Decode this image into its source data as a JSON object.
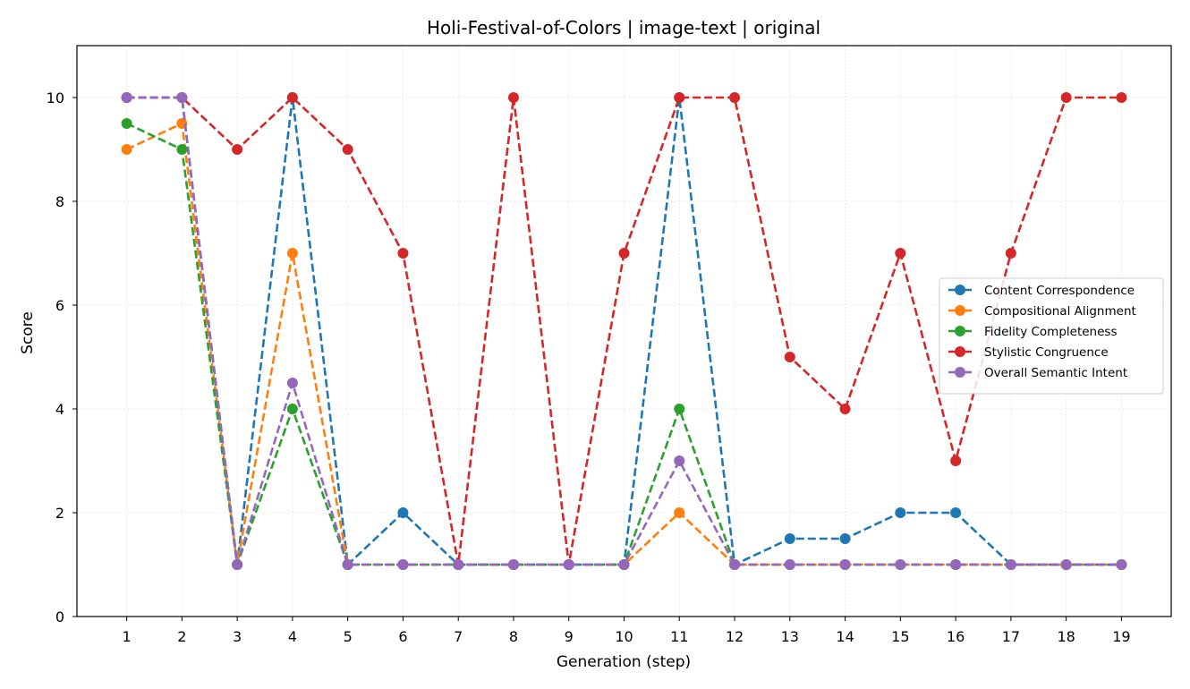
{
  "chart_data": {
    "type": "line",
    "title": "Holi-Festival-of-Colors | image-text | original",
    "xlabel": "Generation (step)",
    "ylabel": "Score",
    "x": [
      1,
      2,
      3,
      4,
      5,
      6,
      7,
      8,
      9,
      10,
      11,
      12,
      13,
      14,
      15,
      16,
      17,
      18,
      19
    ],
    "ylim": [
      0,
      11
    ],
    "xlim": [
      0.1,
      19.9
    ],
    "yticks": [
      0,
      2,
      4,
      6,
      8,
      10
    ],
    "grid": true,
    "line_style": "dashed",
    "marker": "circle",
    "legend_position": "center-right",
    "series": [
      {
        "name": "Content Correspondence",
        "color": "#1f77b4",
        "values": [
          10,
          10,
          1,
          10,
          1,
          2,
          1,
          1,
          1,
          1,
          10,
          1,
          1.5,
          1.5,
          2,
          2,
          1,
          1,
          1
        ]
      },
      {
        "name": "Compositional Alignment",
        "color": "#ff7f0e",
        "values": [
          9,
          9.5,
          1,
          7,
          1,
          1,
          1,
          1,
          1,
          1,
          2,
          1,
          1,
          1,
          1,
          1,
          1,
          1,
          1
        ]
      },
      {
        "name": "Fidelity Completeness",
        "color": "#2ca02c",
        "values": [
          9.5,
          9,
          1,
          4,
          1,
          1,
          1,
          1,
          1,
          1,
          4,
          1,
          1,
          1,
          1,
          1,
          1,
          1,
          1
        ]
      },
      {
        "name": "Stylistic Congruence",
        "color": "#d62728",
        "values": [
          10,
          10,
          9,
          10,
          9,
          7,
          1,
          10,
          1,
          7,
          10,
          10,
          5,
          4,
          7,
          3,
          7,
          10,
          10
        ]
      },
      {
        "name": "Overall Semantic Intent",
        "color": "#9467bd",
        "values": [
          10,
          10,
          1,
          4.5,
          1,
          1,
          1,
          1,
          1,
          1,
          3,
          1,
          1,
          1,
          1,
          1,
          1,
          1,
          1
        ]
      }
    ]
  }
}
